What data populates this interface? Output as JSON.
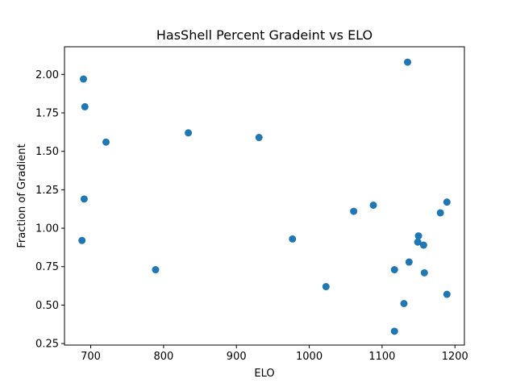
{
  "chart_data": {
    "type": "scatter",
    "title": "HasShell Percent Gradeint vs ELO",
    "xlabel": "ELO",
    "ylabel": "Fraction of Gradient",
    "xlim": [
      664,
      1213
    ],
    "ylim": [
      0.24,
      2.18
    ],
    "grid": false,
    "x_ticks": [
      700,
      800,
      900,
      1000,
      1100,
      1200
    ],
    "x_tick_labels": [
      "700",
      "800",
      "900",
      "1000",
      "1100",
      "1200"
    ],
    "y_ticks": [
      0.25,
      0.5,
      0.75,
      1.0,
      1.25,
      1.5,
      1.75,
      2.0
    ],
    "y_tick_labels": [
      "0.25",
      "0.50",
      "0.75",
      "1.00",
      "1.25",
      "1.50",
      "1.75",
      "2.00"
    ],
    "marker_color": "#1f77b4",
    "series": [
      {
        "points": [
          [
            690,
            1.97
          ],
          [
            692,
            1.79
          ],
          [
            721,
            1.56
          ],
          [
            834,
            1.62
          ],
          [
            931,
            1.59
          ],
          [
            691,
            1.19
          ],
          [
            688,
            0.92
          ],
          [
            789,
            0.73
          ],
          [
            977,
            0.93
          ],
          [
            1023,
            0.62
          ],
          [
            1061,
            1.11
          ],
          [
            1088,
            1.15
          ],
          [
            1135,
            2.08
          ],
          [
            1117,
            0.73
          ],
          [
            1130,
            0.51
          ],
          [
            1117,
            0.33
          ],
          [
            1137,
            0.78
          ],
          [
            1149,
            0.91
          ],
          [
            1150,
            0.95
          ],
          [
            1157,
            0.89
          ],
          [
            1158,
            0.71
          ],
          [
            1180,
            1.1
          ],
          [
            1189,
            1.17
          ],
          [
            1189,
            0.57
          ]
        ]
      }
    ]
  }
}
